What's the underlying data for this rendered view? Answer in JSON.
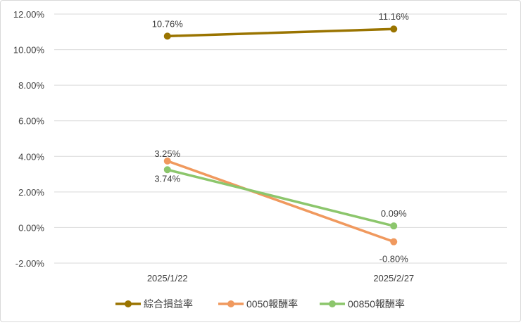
{
  "chart_data": {
    "type": "line",
    "categories": [
      "2025/1/22",
      "2025/2/27"
    ],
    "series": [
      {
        "name": "綜合損益率",
        "values": [
          10.76,
          11.16
        ],
        "labels": [
          "10.76%",
          "11.16%"
        ],
        "color": "#9A7400",
        "label_pos": [
          "above",
          "above"
        ]
      },
      {
        "name": "0050報酬率",
        "values": [
          3.74,
          -0.8
        ],
        "labels": [
          "3.74%",
          "-0.80%"
        ],
        "color": "#F0995E",
        "label_pos": [
          "below",
          "below"
        ]
      },
      {
        "name": "00850報酬率",
        "values": [
          3.25,
          0.09
        ],
        "labels": [
          "3.25%",
          "0.09%"
        ],
        "color": "#8CC66C",
        "label_pos": [
          "above",
          "above"
        ]
      }
    ],
    "yticks": [
      "-2.00%",
      "0.00%",
      "2.00%",
      "4.00%",
      "6.00%",
      "8.00%",
      "10.00%",
      "12.00%"
    ],
    "ylim": [
      -2,
      12
    ],
    "grid": true,
    "legend": "bottom",
    "title": "",
    "xlabel": "",
    "ylabel": ""
  }
}
